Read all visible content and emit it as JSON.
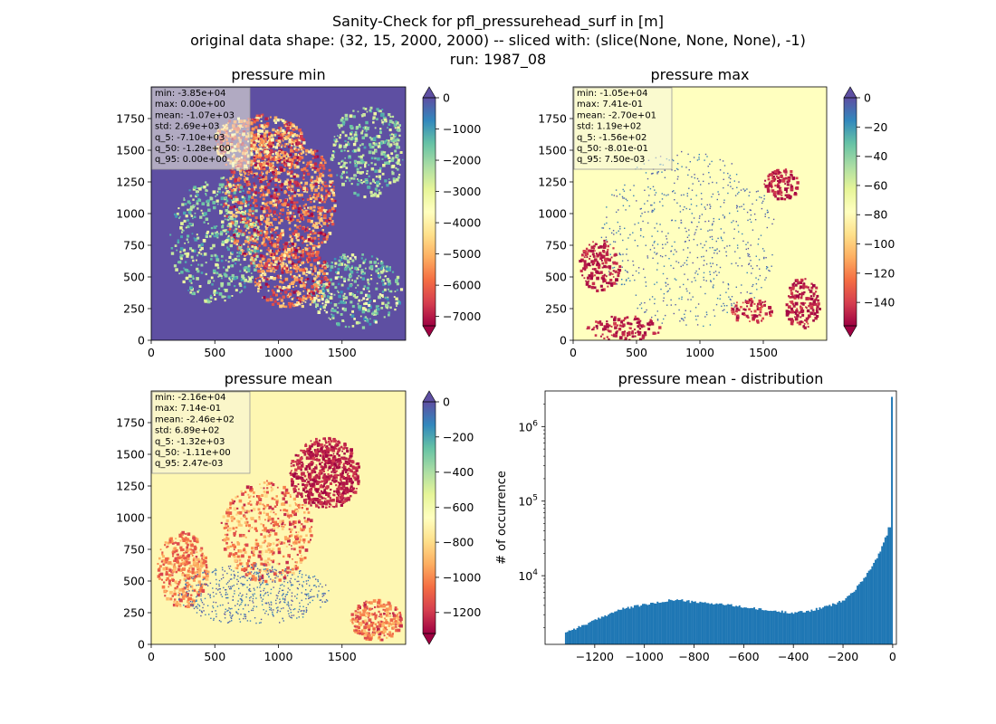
{
  "figure": {
    "suptitle": [
      "Sanity-Check for pfl_pressurehead_surf in [m]",
      "original data shape: (32, 15, 2000, 2000) -- sliced with: (slice(None, None, None), -1)",
      "run: 1987_08"
    ]
  },
  "colors": {
    "spectral_stops": [
      "#9e0142",
      "#d53e4f",
      "#f46d43",
      "#fdae61",
      "#fee08b",
      "#ffffbf",
      "#e6f598",
      "#abdda4",
      "#66c2a5",
      "#3288bd",
      "#5e4fa2"
    ],
    "hist_bar": "#1f77b4",
    "map_base_min": "#5e4fa2",
    "map_base_max": "#ffffbf",
    "map_base_mean": "#fef7b2"
  },
  "chart_data": [
    {
      "type": "heatmap",
      "title": "pressure min",
      "colormap": "Spectral",
      "x_ticks": [
        0,
        500,
        1000,
        1500
      ],
      "y_ticks": [
        0,
        250,
        500,
        750,
        1000,
        1250,
        1500,
        1750
      ],
      "xlim": [
        0,
        2000
      ],
      "ylim": [
        0,
        2000
      ],
      "colorbar": {
        "vmin": -7300,
        "vmax": 0,
        "ticks": [
          0,
          -1000,
          -2000,
          -3000,
          -4000,
          -5000,
          -6000,
          -7000
        ],
        "tick_labels": [
          "0",
          "−1000",
          "−2000",
          "−3000",
          "−4000",
          "−5000",
          "−6000",
          "−7000"
        ],
        "extend": "both"
      },
      "stats": [
        "min: -3.85e+04",
        "max: 0.00e+00",
        "mean: -1.07e+03",
        "std: 2.69e+03",
        "q_5: -7.10e+03",
        "q_50: -1.28e+00",
        "q_95: 0.00e+00"
      ]
    },
    {
      "type": "heatmap",
      "title": "pressure max",
      "colormap": "Spectral",
      "x_ticks": [
        0,
        500,
        1000,
        1500
      ],
      "y_ticks": [
        0,
        250,
        500,
        750,
        1000,
        1250,
        1500,
        1750
      ],
      "xlim": [
        0,
        2000
      ],
      "ylim": [
        0,
        2000
      ],
      "colorbar": {
        "vmin": -156,
        "vmax": 0,
        "ticks": [
          0,
          -20,
          -40,
          -60,
          -80,
          -100,
          -120,
          -140
        ],
        "tick_labels": [
          "0",
          "−20",
          "−40",
          "−60",
          "−80",
          "−100",
          "−120",
          "−140"
        ],
        "extend": "both"
      },
      "stats": [
        "min: -1.05e+04",
        "max: 7.41e-01",
        "mean: -2.70e+01",
        "std: 1.19e+02",
        "q_5: -1.56e+02",
        "q_50: -8.01e-01",
        "q_95: 7.50e-03"
      ]
    },
    {
      "type": "heatmap",
      "title": "pressure mean",
      "colormap": "Spectral",
      "x_ticks": [
        0,
        500,
        1000,
        1500
      ],
      "y_ticks": [
        0,
        250,
        500,
        750,
        1000,
        1250,
        1500,
        1750
      ],
      "xlim": [
        0,
        2000
      ],
      "ylim": [
        0,
        2000
      ],
      "colorbar": {
        "vmin": -1320,
        "vmax": 0,
        "ticks": [
          0,
          -200,
          -400,
          -600,
          -800,
          -1000,
          -1200
        ],
        "tick_labels": [
          "0",
          "−200",
          "−400",
          "−600",
          "−800",
          "−1000",
          "−1200"
        ],
        "extend": "both"
      },
      "stats": [
        "min: -2.16e+04",
        "max: 7.14e-01",
        "mean: -2.46e+02",
        "std: 6.89e+02",
        "q_5: -1.32e+03",
        "q_50: -1.11e+00",
        "q_95: 2.47e-03"
      ]
    },
    {
      "type": "bar",
      "title": "pressure mean - distribution",
      "xlabel": "",
      "ylabel": "# of occurrence",
      "y_scale": "log",
      "xlim": [
        -1400,
        15
      ],
      "ylim": [
        1200,
        3000000
      ],
      "x_ticks": [
        -1200,
        -1000,
        -800,
        -600,
        -400,
        -200,
        0
      ],
      "x_tick_labels": [
        "−1200",
        "−1000",
        "−800",
        "−600",
        "−400",
        "−200",
        "0"
      ],
      "y_ticks": [
        10000,
        100000,
        1000000
      ],
      "y_tick_labels": [
        "10^4",
        "10^5",
        "10^6"
      ],
      "bin_range": [
        -1320,
        0
      ],
      "bin_count": 200,
      "counts_profile": [
        [
          -1320,
          1750
        ],
        [
          -1280,
          1950
        ],
        [
          -1200,
          2500
        ],
        [
          -1150,
          3000
        ],
        [
          -1100,
          3500
        ],
        [
          -1050,
          3800
        ],
        [
          -1000,
          4100
        ],
        [
          -950,
          4300
        ],
        [
          -900,
          4700
        ],
        [
          -850,
          4700
        ],
        [
          -800,
          4400
        ],
        [
          -700,
          4200
        ],
        [
          -600,
          3800
        ],
        [
          -500,
          3400
        ],
        [
          -450,
          3300
        ],
        [
          -400,
          3200
        ],
        [
          -350,
          3300
        ],
        [
          -300,
          3600
        ],
        [
          -250,
          4000
        ],
        [
          -200,
          4600
        ],
        [
          -150,
          6500
        ],
        [
          -100,
          11000
        ],
        [
          -60,
          18000
        ],
        [
          -40,
          26000
        ],
        [
          -20,
          38000
        ],
        [
          -12,
          52000
        ],
        [
          -7,
          34000
        ],
        [
          -2,
          2500000
        ]
      ]
    }
  ]
}
